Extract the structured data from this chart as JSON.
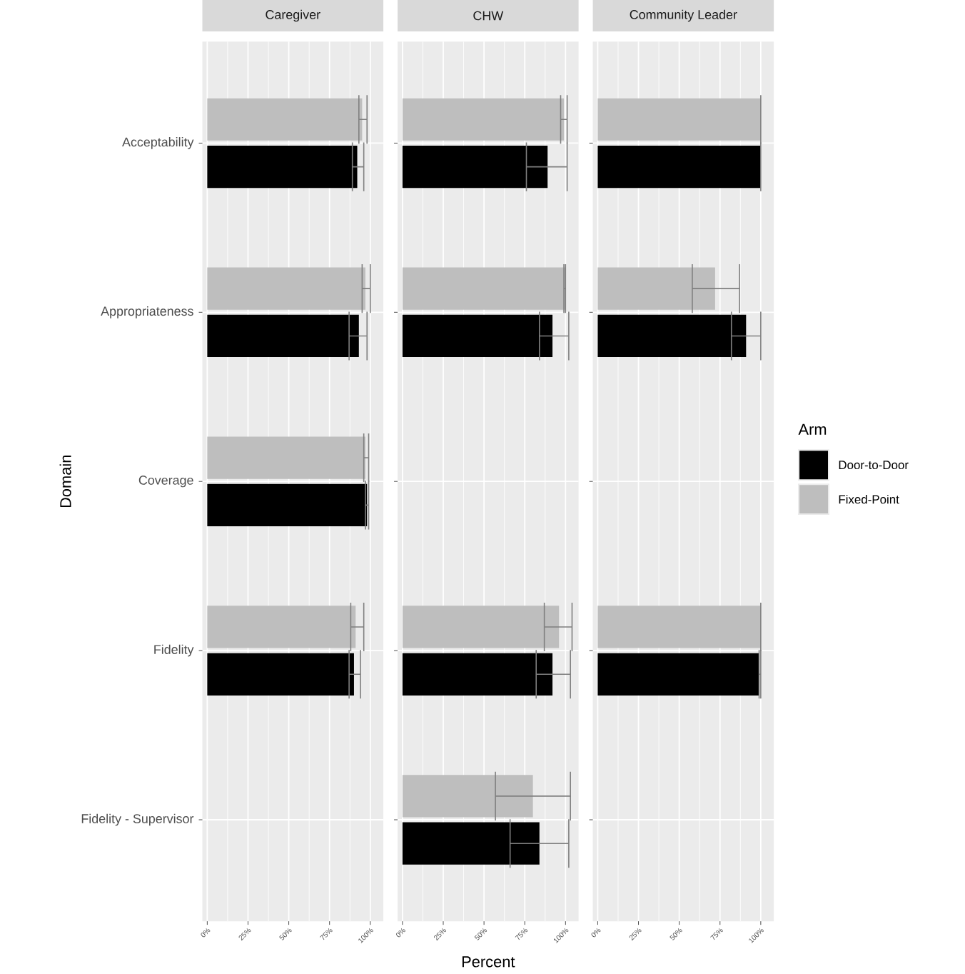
{
  "chart_data": [
    {
      "type": "bar",
      "orientation": "horizontal",
      "title": "Caregiver",
      "ylabel": "Domain",
      "legend_title": "Arm",
      "legend": "right",
      "categories": [
        "Acceptability",
        "Appropriateness",
        "Coverage",
        "Fidelity",
        "Fidelity - Supervisor"
      ],
      "xlim": [
        -3,
        108
      ],
      "xticks": [
        {
          "value": 0,
          "label": "0%"
        },
        {
          "value": 25,
          "label": "25%"
        },
        {
          "value": 50,
          "label": "50%"
        },
        {
          "value": 75,
          "label": "75%"
        },
        {
          "value": 100,
          "label": "100%"
        }
      ],
      "grid": true,
      "series": [
        {
          "name": "Door-to-Door",
          "color": "#000000",
          "values": [
            92,
            93,
            98,
            90,
            null
          ],
          "errors": [
            [
              89,
              96
            ],
            [
              87,
              98
            ],
            [
              97,
              99
            ],
            [
              87,
              94
            ],
            null
          ]
        },
        {
          "name": "Fixed-Point",
          "color": "#bebebe",
          "values": [
            95,
            97,
            97,
            91,
            null
          ],
          "errors": [
            [
              93,
              98
            ],
            [
              95,
              100
            ],
            [
              96,
              99
            ],
            [
              88,
              96
            ],
            null
          ]
        }
      ]
    },
    {
      "type": "bar",
      "orientation": "horizontal",
      "title": "CHW",
      "xlabel": "Percent",
      "categories": [
        null,
        null,
        null,
        null,
        null
      ],
      "tick_labels": "x",
      "xlim": [
        -3,
        108
      ],
      "xticks": [
        {
          "value": 0,
          "label": "0%"
        },
        {
          "value": 25,
          "label": "25%"
        },
        {
          "value": 50,
          "label": "50%"
        },
        {
          "value": 75,
          "label": "75%"
        },
        {
          "value": 100,
          "label": "100%"
        }
      ],
      "grid": true,
      "series": [
        {
          "color": "#000000",
          "values": [
            89,
            92,
            null,
            92,
            84
          ],
          "errors": [
            [
              76,
              101
            ],
            [
              84,
              102
            ],
            null,
            [
              82,
              103
            ],
            [
              66,
              102
            ]
          ]
        },
        {
          "color": "#bebebe",
          "values": [
            99,
            100,
            null,
            96,
            80
          ],
          "errors": [
            [
              97,
              101
            ],
            [
              99,
              100
            ],
            null,
            [
              87,
              104
            ],
            [
              57,
              103
            ]
          ]
        }
      ]
    },
    {
      "type": "bar",
      "orientation": "horizontal",
      "title": "Community Leader",
      "categories": [
        null,
        null,
        null,
        null,
        null
      ],
      "tick_labels": "x",
      "xlim": [
        -3,
        108
      ],
      "xticks": [
        {
          "value": 0,
          "label": "0%"
        },
        {
          "value": 25,
          "label": "25%"
        },
        {
          "value": 50,
          "label": "50%"
        },
        {
          "value": 75,
          "label": "75%"
        },
        {
          "value": 100,
          "label": "100%"
        }
      ],
      "grid": true,
      "series": [
        {
          "color": "#000000",
          "values": [
            100,
            91,
            null,
            99,
            null
          ],
          "errors": [
            [
              100,
              100
            ],
            [
              82,
              100
            ],
            null,
            [
              99,
              100
            ],
            null
          ]
        },
        {
          "color": "#bebebe",
          "values": [
            100,
            72,
            null,
            100,
            null
          ],
          "errors": [
            [
              100,
              100
            ],
            [
              58,
              87
            ],
            null,
            [
              100,
              100
            ],
            null
          ]
        }
      ]
    }
  ]
}
